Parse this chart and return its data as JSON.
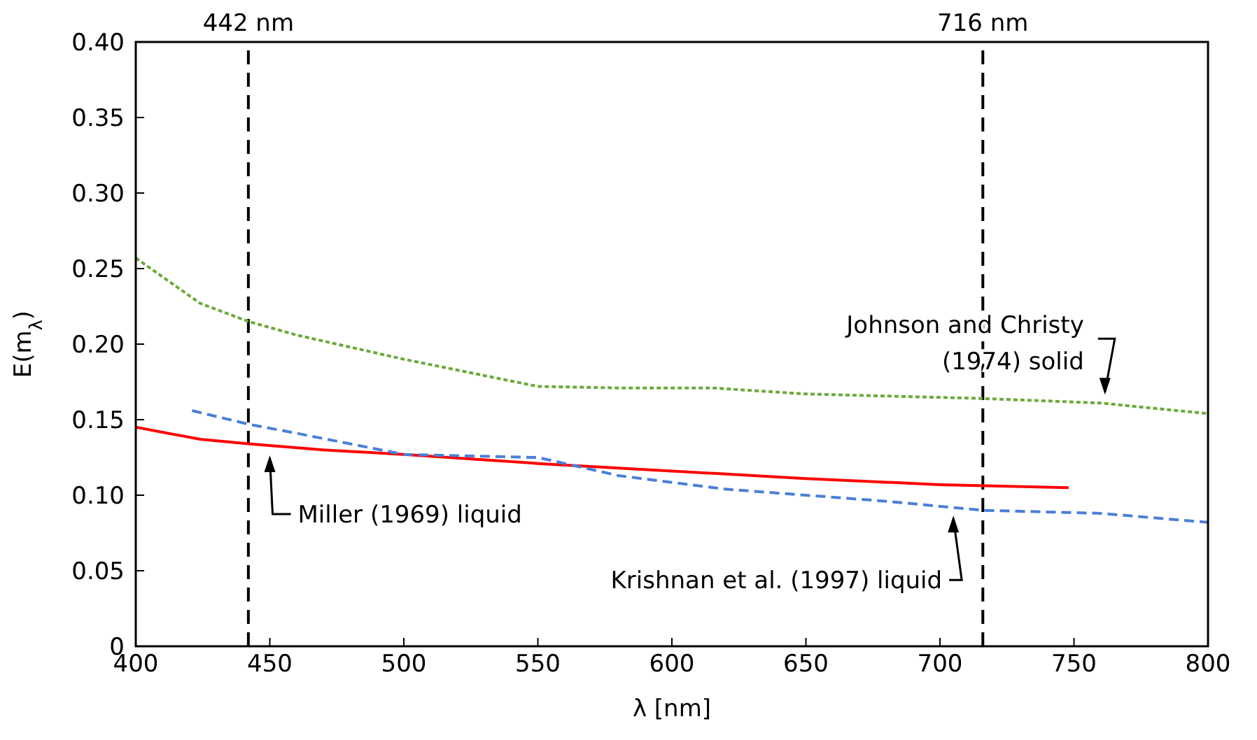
{
  "chart_data": {
    "type": "line",
    "xlabel": "λ [nm]",
    "ylabel": "E(m$_{λ}$)",
    "xlim": [
      400,
      800
    ],
    "xticks": [
      400,
      450,
      500,
      550,
      600,
      650,
      700,
      750,
      800
    ],
    "ylim": [
      0,
      0.4
    ],
    "yticks": [
      0,
      0.05,
      {
        "value": 0.1,
        "label": "0.10"
      },
      0.15,
      {
        "value": 0.2,
        "label": "0.20"
      },
      0.25,
      {
        "value": 0.3,
        "label": "0.30"
      },
      0.35,
      {
        "value": 0.4,
        "label": "0.40"
      }
    ],
    "grid": false,
    "legend": false,
    "marker": "none",
    "series": [
      {
        "color": "#ff0000",
        "line_style": "solid",
        "x": [
          400,
          424,
          442,
          470,
          500,
          550,
          600,
          650,
          700,
          748
        ],
        "values": [
          0.145,
          0.137,
          0.134,
          0.13,
          0.127,
          0.121,
          0.116,
          0.111,
          0.107,
          0.105
        ]
      },
      {
        "color": "#4a7fd6",
        "line_style": "dashed",
        "x": [
          421,
          442,
          460,
          480,
          500,
          550,
          565,
          580,
          620,
          680,
          716,
          760,
          800
        ],
        "values": [
          0.156,
          0.147,
          0.141,
          0.134,
          0.127,
          0.125,
          0.119,
          0.113,
          0.104,
          0.096,
          0.09,
          0.088,
          0.082
        ]
      },
      {
        "color": "#6aaa3a",
        "line_style": "dotted",
        "x": [
          400,
          424,
          442,
          460,
          500,
          550,
          580,
          615,
          650,
          716,
          760,
          800
        ],
        "values": [
          0.257,
          0.227,
          0.215,
          0.206,
          0.19,
          0.172,
          0.171,
          0.171,
          0.167,
          0.164,
          0.161,
          0.154
        ]
      }
    ],
    "ref_lines": [
      {
        "axis": "x",
        "value": 442,
        "label": "442 nm",
        "color": "#000000",
        "line_style": "dashed"
      },
      {
        "axis": "x",
        "value": 716,
        "label": "716 nm",
        "color": "#000000",
        "line_style": "dashed"
      }
    ],
    "annotations": [
      {
        "text": "Miller (1969) liquid",
        "x": 450,
        "y": 0.132
      },
      {
        "text": "Krishnan et al. (1997) liquid",
        "x": 705,
        "y": 0.092
      },
      {
        "text": "Johnson and Christy (1974) solid",
        "x": 760,
        "y": 0.161
      }
    ]
  }
}
